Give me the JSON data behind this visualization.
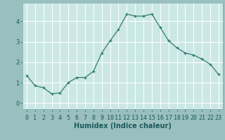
{
  "x": [
    0,
    1,
    2,
    3,
    4,
    5,
    6,
    7,
    8,
    9,
    10,
    11,
    12,
    13,
    14,
    15,
    16,
    17,
    18,
    19,
    20,
    21,
    22,
    23
  ],
  "y": [
    1.35,
    0.85,
    0.75,
    0.45,
    0.5,
    1.0,
    1.25,
    1.25,
    1.55,
    2.45,
    3.05,
    3.6,
    4.35,
    4.25,
    4.25,
    4.35,
    3.7,
    3.05,
    2.7,
    2.45,
    2.35,
    2.15,
    1.9,
    1.4
  ],
  "line_color": "#2e7d6e",
  "marker": "+",
  "marker_size": 3,
  "marker_color": "#2e7d6e",
  "background_color": "#cce8e6",
  "grid_color": "#ffffff",
  "xlabel": "Humidex (Indice chaleur)",
  "xlim": [
    -0.5,
    23.5
  ],
  "ylim": [
    -0.3,
    4.9
  ],
  "xtick_labels": [
    "0",
    "1",
    "2",
    "3",
    "4",
    "5",
    "6",
    "7",
    "8",
    "9",
    "10",
    "11",
    "12",
    "13",
    "14",
    "15",
    "16",
    "17",
    "18",
    "19",
    "20",
    "21",
    "22",
    "23"
  ],
  "xlabel_fontsize": 7,
  "tick_fontsize": 6,
  "yticks": [
    0,
    1,
    2,
    3,
    4
  ],
  "fig_bg_color": "#9abfbf"
}
